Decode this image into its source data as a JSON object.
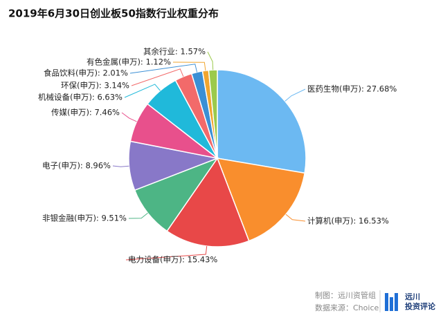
{
  "chart_data": {
    "type": "pie",
    "title": "2019年6月30日创业板50指数行业权重分布",
    "values": [
      27.68,
      16.53,
      15.43,
      9.51,
      8.96,
      7.46,
      6.63,
      3.14,
      2.01,
      1.12,
      1.57
    ],
    "value_labels": [
      "医药生物(申万): 27.68%",
      "计算机(申万): 16.53%",
      "电力设备(申万): 15.43%",
      "非银金融(申万): 9.51%",
      "电子(申万): 8.96%",
      "传媒(申万): 7.46%",
      "机械设备(申万): 6.63%",
      "环保(申万): 3.14%",
      "食品饮料(申万): 2.01%",
      "有色金属(申万): 1.12%",
      "其余行业: 1.57%"
    ],
    "colors": [
      "#6cb9f2",
      "#f98e2d",
      "#e84848",
      "#4db585",
      "#8878c8",
      "#e8508c",
      "#20b9da",
      "#f26a6a",
      "#3b8fd5",
      "#f0a52e",
      "#9cca4c"
    ],
    "credit": "制图：远川资管组",
    "source": "数据来源：Choice",
    "logo_text": "远川",
    "logo_subtext": "投资评论"
  }
}
